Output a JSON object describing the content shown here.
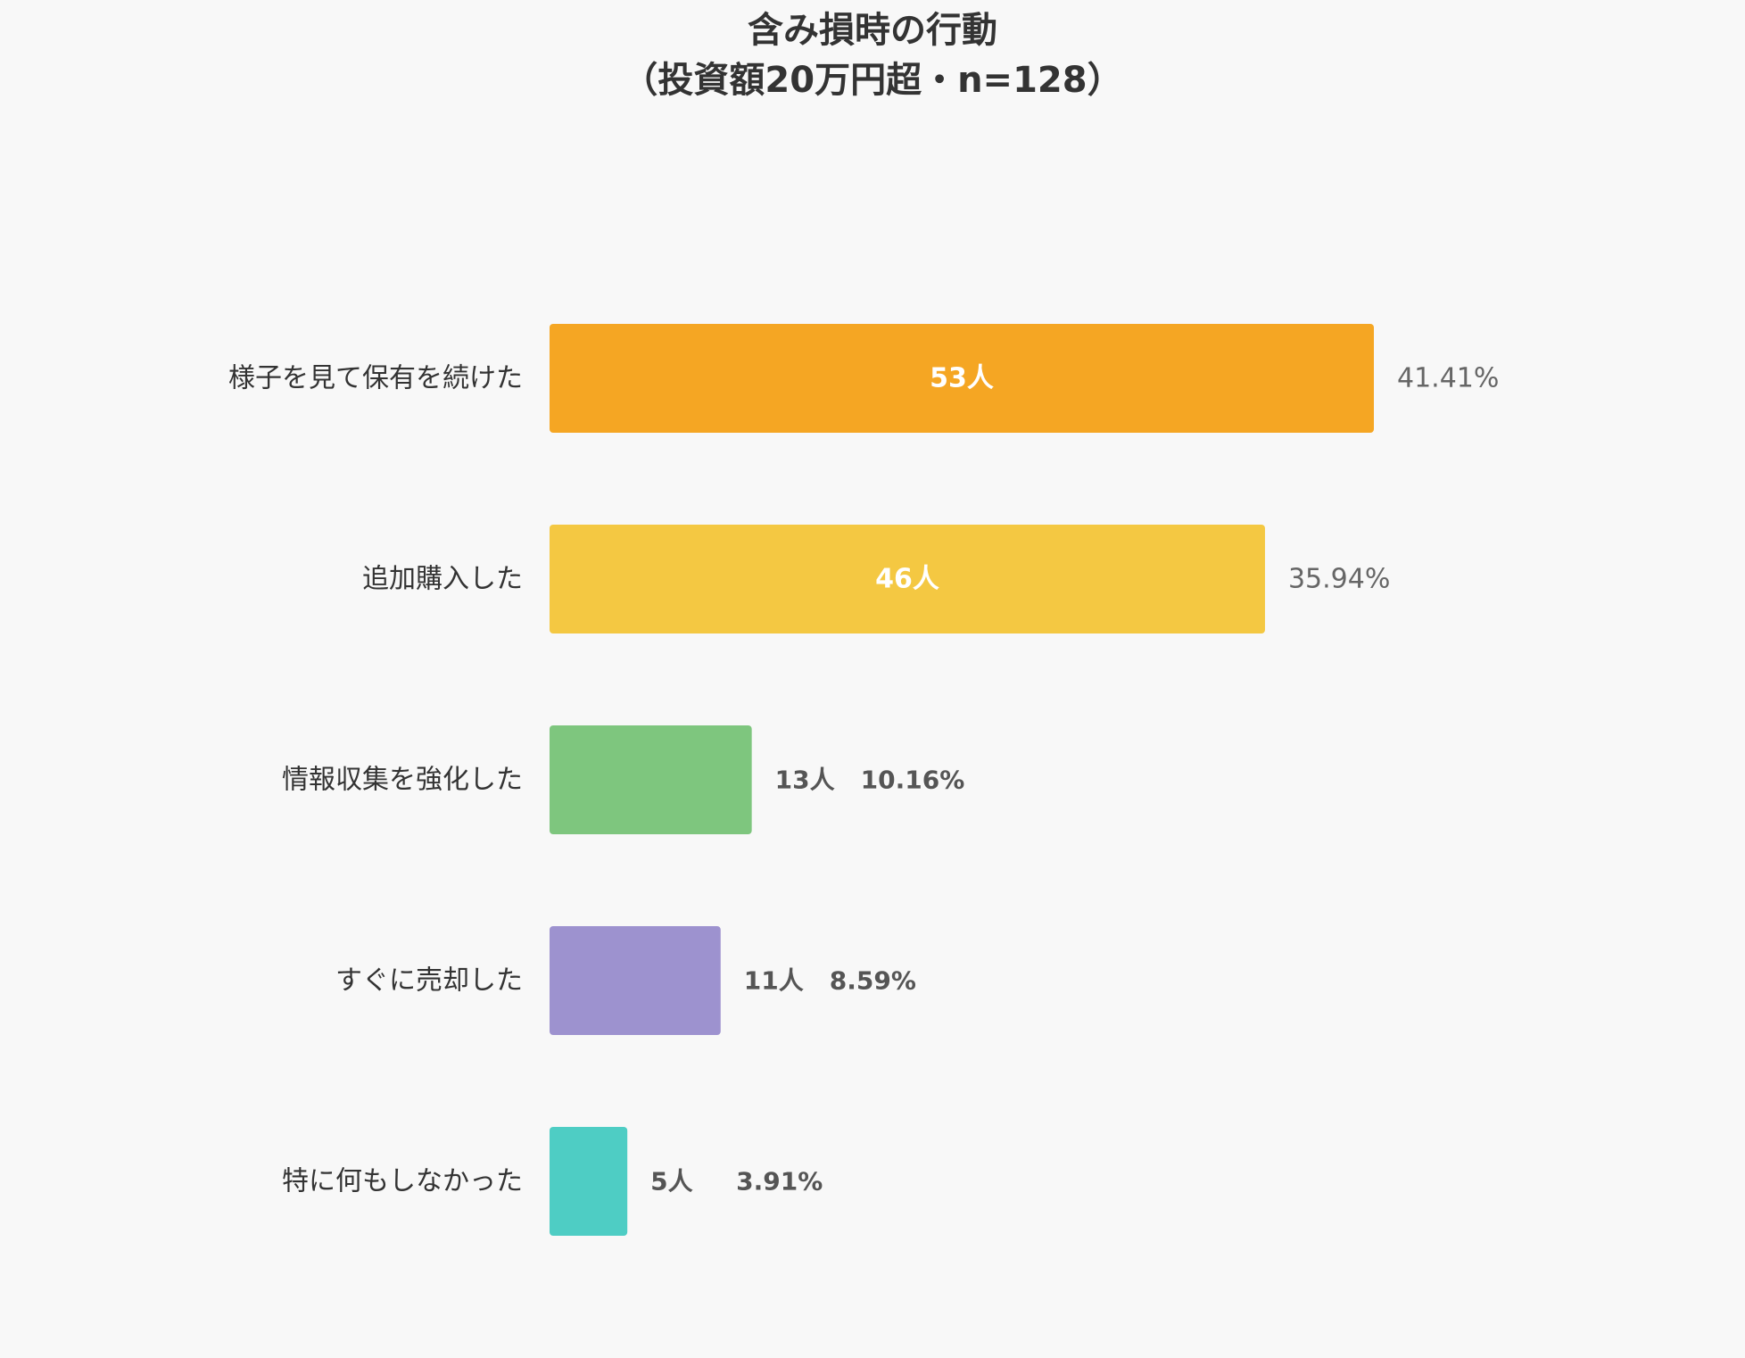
{
  "chart_data": {
    "type": "bar",
    "orientation": "horizontal",
    "title_lines": [
      "含み損時の行動",
      "（投資額20万円超・n=128）"
    ],
    "categories": [
      "様子を見て保有を続けた",
      "追加購入した",
      "情報収集を強化した",
      "すぐに売却した",
      "特に何もしなかった"
    ],
    "values": [
      53,
      46,
      13,
      11,
      5
    ],
    "value_labels": [
      "53人",
      "46人",
      "13人",
      "11人",
      "5人"
    ],
    "percent_labels": [
      "41.41%",
      "35.94%",
      "10.16%",
      "8.59%",
      "3.91%"
    ],
    "colors": [
      "#f5a623",
      "#f4c842",
      "#7ec67e",
      "#9d92cf",
      "#4ecdc4"
    ],
    "xlim": [
      0,
      53
    ],
    "grid": false,
    "legend": "none"
  }
}
